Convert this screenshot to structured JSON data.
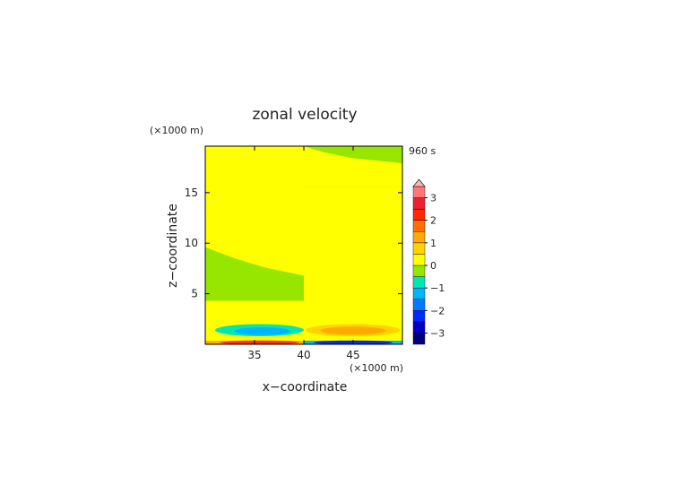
{
  "chart_data": {
    "type": "heatmap",
    "title": "zonal velocity",
    "xlabel": "x−coordinate",
    "ylabel": "z−coordinate",
    "x_unit": "(×1000 m)",
    "y_unit": "(×1000 m)",
    "time_label": "960 s",
    "xlim": [
      30,
      50
    ],
    "ylim": [
      0,
      19.6
    ],
    "x_ticks": [
      35,
      40,
      45
    ],
    "y_ticks": [
      5,
      10,
      15
    ],
    "colorbar": {
      "min": -3.5,
      "max": 3.5,
      "ticks": [
        3,
        2,
        1,
        0,
        -1,
        -2,
        -3
      ],
      "levels": [
        {
          "lo": -3.5,
          "hi": -3.0,
          "color": "#00007a"
        },
        {
          "lo": -3.0,
          "hi": -2.5,
          "color": "#0000c8"
        },
        {
          "lo": -2.5,
          "hi": -2.0,
          "color": "#0028ff"
        },
        {
          "lo": -2.0,
          "hi": -1.5,
          "color": "#0078ff"
        },
        {
          "lo": -1.5,
          "hi": -1.0,
          "color": "#00b4ff"
        },
        {
          "lo": -1.0,
          "hi": -0.5,
          "color": "#00e6b4"
        },
        {
          "lo": -0.5,
          "hi": 0.0,
          "color": "#96e600"
        },
        {
          "lo": 0.0,
          "hi": 0.5,
          "color": "#ffff00"
        },
        {
          "lo": 0.5,
          "hi": 1.0,
          "color": "#ffd200"
        },
        {
          "lo": 1.0,
          "hi": 1.5,
          "color": "#ffaa00"
        },
        {
          "lo": 1.5,
          "hi": 2.0,
          "color": "#ff6e00"
        },
        {
          "lo": 2.0,
          "hi": 2.5,
          "color": "#ff2800"
        },
        {
          "lo": 2.5,
          "hi": 3.0,
          "color": "#f01e32"
        },
        {
          "lo": 3.0,
          "hi": 3.5,
          "color": "#ff7878"
        },
        {
          "lo": 3.5,
          "hi": 4.0,
          "color": "#ffb4b4"
        }
      ]
    },
    "regions": [
      {
        "shape": "rect",
        "x0": 30,
        "x1": 50,
        "y0": 0,
        "y1": 19.6,
        "value": 0.2
      },
      {
        "shape": "path",
        "x": [
          30,
          32,
          35,
          38,
          40,
          40,
          30
        ],
        "y": [
          16.2,
          15.9,
          15.5,
          15.2,
          15.0,
          4.3,
          4.3
        ],
        "value": -0.2
      },
      {
        "shape": "path",
        "x": [
          40,
          42,
          45,
          48,
          50,
          50,
          40
        ],
        "y": [
          6.1,
          6.3,
          7.0,
          8.0,
          8.9,
          15.6,
          15.6
        ],
        "value": -0.2
      },
      {
        "shape": "path",
        "x": [
          30,
          33,
          36,
          39,
          40,
          40,
          30
        ],
        "y": [
          9.6,
          8.5,
          7.6,
          7.0,
          6.8,
          19.6,
          19.6
        ],
        "value": 0.2
      },
      {
        "shape": "path",
        "x": [
          40,
          42,
          45,
          48,
          50,
          50,
          40
        ],
        "y": [
          19.6,
          19.0,
          18.4,
          18.1,
          17.9,
          19.6,
          19.6
        ],
        "value": -0.2
      },
      {
        "shape": "path",
        "x": [
          40,
          41,
          44,
          47,
          50,
          50,
          40
        ],
        "y": [
          4.3,
          3.6,
          3.2,
          2.9,
          2.6,
          15.6,
          15.6
        ],
        "value": 0.2
      },
      {
        "shape": "ellipse",
        "cx": 35.5,
        "cy": 1.4,
        "rx": 4.5,
        "ry": 0.6,
        "value": -0.7
      },
      {
        "shape": "ellipse",
        "cx": 35.8,
        "cy": 1.3,
        "rx": 2.8,
        "ry": 0.38,
        "value": -1.2
      },
      {
        "shape": "ellipse",
        "cx": 45.0,
        "cy": 1.4,
        "rx": 4.8,
        "ry": 0.6,
        "value": 0.7
      },
      {
        "shape": "ellipse",
        "cx": 45.0,
        "cy": 1.35,
        "rx": 3.3,
        "ry": 0.4,
        "value": 1.2
      },
      {
        "shape": "rect",
        "x0": 30,
        "x1": 40,
        "y0": 0,
        "y1": 0.35,
        "value": 1.3
      },
      {
        "shape": "ellipse",
        "cx": 35.5,
        "cy": 0.18,
        "rx": 4.0,
        "ry": 0.2,
        "value": 2.3
      },
      {
        "shape": "rect",
        "x0": 40,
        "x1": 50,
        "y0": 0,
        "y1": 0.35,
        "value": -1.3
      },
      {
        "shape": "ellipse",
        "cx": 45.0,
        "cy": 0.18,
        "rx": 4.0,
        "ry": 0.2,
        "value": -2.3
      }
    ]
  }
}
